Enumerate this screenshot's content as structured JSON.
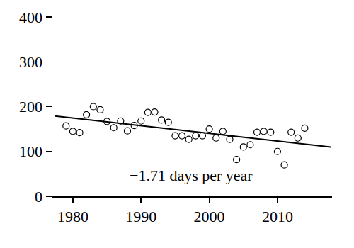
{
  "chart_data": {
    "type": "scatter",
    "series": [
      {
        "type": "scatter",
        "marker": "circle-open",
        "color": "#000000",
        "x": [
          1979,
          1980,
          1981,
          1982,
          1983,
          1984,
          1985,
          1986,
          1987,
          1988,
          1989,
          1990,
          1991,
          1992,
          1993,
          1994,
          1995,
          1996,
          1997,
          1998,
          1999,
          2000,
          2001,
          2002,
          2003,
          2004,
          2005,
          2006,
          2007,
          2008,
          2009,
          2010,
          2011,
          2012,
          2013,
          2014
        ],
        "values": [
          157,
          145,
          142,
          182,
          200,
          193,
          167,
          153,
          168,
          146,
          158,
          168,
          187,
          188,
          170,
          165,
          135,
          135,
          127,
          135,
          135,
          150,
          130,
          145,
          127,
          82,
          110,
          115,
          143,
          145,
          143,
          100,
          70,
          143,
          130,
          152
        ]
      },
      {
        "type": "line",
        "line_style": "solid",
        "color": "#000000",
        "x": [
          1977.4,
          2017.8
        ],
        "values": [
          179,
          110
        ]
      }
    ],
    "annotations": [
      "−1.71 days per year"
    ],
    "xlim": [
      1977,
      2018
    ],
    "xticks": [
      1980,
      1990,
      2000,
      2010
    ],
    "ylim": [
      0,
      400
    ],
    "yticks": [
      0,
      100,
      200,
      300,
      400
    ],
    "grid": false
  }
}
